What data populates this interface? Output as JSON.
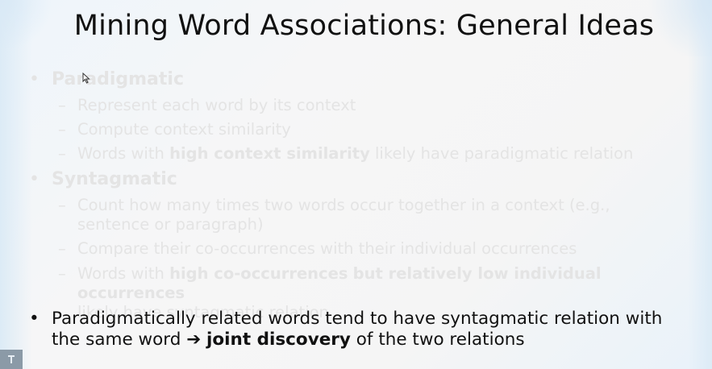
{
  "slide": {
    "title": "Mining Word Associations: General Ideas",
    "bullet_glyph": "•",
    "dash_glyph": "–",
    "paradigmatic": {
      "heading": "Paradigmatic",
      "items": [
        {
          "text": "Represent each word by its context"
        },
        {
          "text": "Compute context similarity"
        },
        {
          "pre": "Words with ",
          "bold": "high context similarity",
          "post": " likely have paradigmatic relation"
        }
      ]
    },
    "syntagmatic": {
      "heading": "Syntagmatic",
      "items": [
        {
          "line1": "Count how many times two words occur together in a context (e.g.,",
          "line2": "sentence or paragraph)"
        },
        {
          "text": "Compare their co-occurrences with their individual occurrences"
        },
        {
          "bold1": "high co-occurrences",
          "bold2": "but relatively low individual occurrences",
          "pre": "Words with ",
          "line2": "likely have syntagmatic relation"
        }
      ]
    },
    "conclusion": {
      "line1": "Paradigmatically related words tend to have syntagmatic relation with",
      "line2_pre": "the same word ",
      "arrow": "➔",
      "bold": "joint discovery",
      "line2_post": " of the two relations"
    }
  },
  "corner_icon": "presenter-icon"
}
